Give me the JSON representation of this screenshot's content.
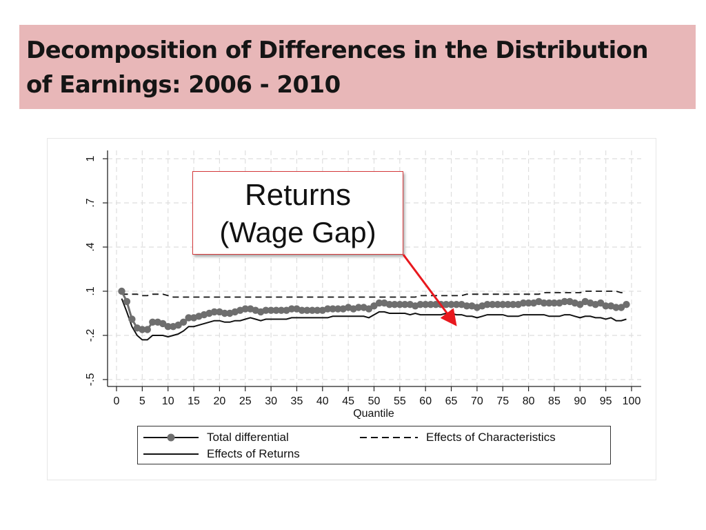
{
  "slide": {
    "title": "Decomposition of Differences in the Distribution\nof Earnings: 2006 - 2010",
    "callout_line1": "Returns",
    "callout_line2": "(Wage Gap)"
  },
  "colors": {
    "title_band": "#e8b7b8",
    "callout_border": "#d5383a",
    "arrow": "#e8181e",
    "marker": "#6e6e6e",
    "line": "#111111"
  },
  "chart_data": {
    "type": "line",
    "xlabel": "Quantile",
    "ylabel": "",
    "xlim": [
      0,
      100
    ],
    "ylim": [
      -0.5,
      1
    ],
    "x_ticks": [
      0,
      5,
      10,
      15,
      20,
      25,
      30,
      35,
      40,
      45,
      50,
      55,
      60,
      65,
      70,
      75,
      80,
      85,
      90,
      95,
      100
    ],
    "x_tick_labels": [
      "0",
      "5",
      "10",
      "15",
      "20",
      "25",
      "30",
      "35",
      "40",
      "45",
      "50",
      "55",
      "60",
      "65",
      "70",
      "75",
      "80",
      "85",
      "90",
      "95",
      "100"
    ],
    "y_ticks": [
      -0.5,
      -0.2,
      0.1,
      0.4,
      0.7,
      1
    ],
    "y_tick_labels": [
      "-.5",
      "-.2",
      ".1",
      ".4",
      ".7",
      "1"
    ],
    "grid": true,
    "legend_position": "bottom",
    "x": [
      1,
      2,
      3,
      4,
      5,
      6,
      7,
      8,
      9,
      10,
      11,
      12,
      13,
      14,
      15,
      16,
      17,
      18,
      19,
      20,
      21,
      22,
      23,
      24,
      25,
      26,
      27,
      28,
      29,
      30,
      31,
      32,
      33,
      34,
      35,
      36,
      37,
      38,
      39,
      40,
      41,
      42,
      43,
      44,
      45,
      46,
      47,
      48,
      49,
      50,
      51,
      52,
      53,
      54,
      55,
      56,
      57,
      58,
      59,
      60,
      61,
      62,
      63,
      64,
      65,
      66,
      67,
      68,
      69,
      70,
      71,
      72,
      73,
      74,
      75,
      76,
      77,
      78,
      79,
      80,
      81,
      82,
      83,
      84,
      85,
      86,
      87,
      88,
      89,
      90,
      91,
      92,
      93,
      94,
      95,
      96,
      97,
      98,
      99
    ],
    "series": [
      {
        "name": "Total differential",
        "style": "markers",
        "values": [
          0.1,
          0.03,
          -0.09,
          -0.15,
          -0.16,
          -0.16,
          -0.11,
          -0.11,
          -0.12,
          -0.14,
          -0.14,
          -0.13,
          -0.11,
          -0.08,
          -0.08,
          -0.07,
          -0.06,
          -0.05,
          -0.04,
          -0.04,
          -0.05,
          -0.05,
          -0.04,
          -0.03,
          -0.02,
          -0.02,
          -0.03,
          -0.04,
          -0.03,
          -0.03,
          -0.03,
          -0.03,
          -0.03,
          -0.02,
          -0.02,
          -0.03,
          -0.03,
          -0.03,
          -0.03,
          -0.03,
          -0.02,
          -0.02,
          -0.02,
          -0.02,
          -0.01,
          -0.02,
          -0.01,
          -0.01,
          -0.02,
          0,
          0.02,
          0.02,
          0.01,
          0.01,
          0.01,
          0.01,
          0.01,
          0,
          0.01,
          0.01,
          0.01,
          0.01,
          0.01,
          0.01,
          0.01,
          0.01,
          0.01,
          0,
          0,
          -0.01,
          0,
          0.01,
          0.01,
          0.01,
          0.01,
          0.01,
          0.01,
          0.01,
          0.02,
          0.02,
          0.02,
          0.03,
          0.02,
          0.02,
          0.02,
          0.02,
          0.03,
          0.03,
          0.02,
          0.01,
          0.03,
          0.02,
          0.01,
          0.02,
          0,
          0,
          -0.01,
          -0.01,
          0.01
        ]
      },
      {
        "name": "Effects of Characteristics",
        "style": "dashed",
        "values": [
          0.08,
          0.08,
          0.08,
          0.08,
          0.07,
          0.07,
          0.08,
          0.08,
          0.08,
          0.07,
          0.06,
          0.06,
          0.06,
          0.06,
          0.06,
          0.06,
          0.06,
          0.06,
          0.06,
          0.06,
          0.06,
          0.06,
          0.06,
          0.06,
          0.06,
          0.06,
          0.06,
          0.06,
          0.06,
          0.06,
          0.06,
          0.06,
          0.06,
          0.06,
          0.06,
          0.06,
          0.06,
          0.06,
          0.06,
          0.06,
          0.06,
          0.06,
          0.06,
          0.06,
          0.06,
          0.06,
          0.06,
          0.06,
          0.06,
          0.06,
          0.06,
          0.06,
          0.06,
          0.06,
          0.06,
          0.06,
          0.06,
          0.06,
          0.07,
          0.07,
          0.07,
          0.07,
          0.07,
          0.07,
          0.07,
          0.07,
          0.07,
          0.08,
          0.08,
          0.08,
          0.08,
          0.08,
          0.08,
          0.08,
          0.08,
          0.08,
          0.08,
          0.08,
          0.08,
          0.08,
          0.08,
          0.08,
          0.09,
          0.09,
          0.09,
          0.09,
          0.09,
          0.09,
          0.09,
          0.09,
          0.1,
          0.1,
          0.1,
          0.1,
          0.1,
          0.1,
          0.1,
          0.09,
          0.09
        ]
      },
      {
        "name": "Effects of Returns",
        "style": "solid",
        "values": [
          0.05,
          -0.04,
          -0.14,
          -0.2,
          -0.23,
          -0.23,
          -0.2,
          -0.2,
          -0.2,
          -0.21,
          -0.2,
          -0.19,
          -0.17,
          -0.14,
          -0.14,
          -0.13,
          -0.12,
          -0.11,
          -0.1,
          -0.1,
          -0.11,
          -0.11,
          -0.1,
          -0.1,
          -0.09,
          -0.08,
          -0.09,
          -0.1,
          -0.09,
          -0.09,
          -0.09,
          -0.09,
          -0.09,
          -0.08,
          -0.08,
          -0.08,
          -0.08,
          -0.08,
          -0.08,
          -0.08,
          -0.08,
          -0.07,
          -0.07,
          -0.07,
          -0.07,
          -0.07,
          -0.07,
          -0.07,
          -0.08,
          -0.06,
          -0.04,
          -0.04,
          -0.05,
          -0.05,
          -0.05,
          -0.05,
          -0.06,
          -0.05,
          -0.06,
          -0.06,
          -0.06,
          -0.06,
          -0.06,
          -0.05,
          -0.05,
          -0.06,
          -0.06,
          -0.07,
          -0.07,
          -0.08,
          -0.07,
          -0.06,
          -0.06,
          -0.06,
          -0.06,
          -0.07,
          -0.07,
          -0.07,
          -0.06,
          -0.06,
          -0.06,
          -0.06,
          -0.06,
          -0.07,
          -0.07,
          -0.07,
          -0.06,
          -0.06,
          -0.07,
          -0.08,
          -0.07,
          -0.07,
          -0.08,
          -0.08,
          -0.09,
          -0.08,
          -0.1,
          -0.1,
          -0.09
        ]
      }
    ]
  }
}
